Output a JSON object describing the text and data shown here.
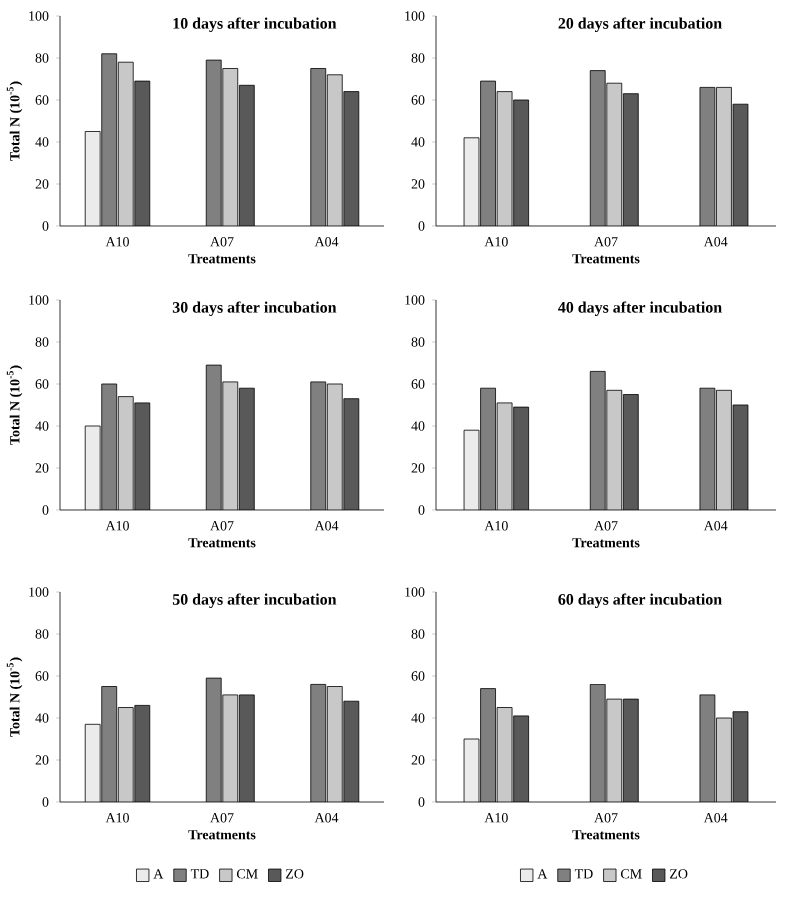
{
  "chart_data": [
    {
      "type": "bar",
      "title": "10 days after incubation",
      "xlabel": "Treatments",
      "ylabel": "Total N (10$^{-5}$)",
      "categories": [
        "A10",
        "A07",
        "A04"
      ],
      "ylim": [
        0,
        100
      ],
      "yticks": [
        0,
        20,
        40,
        60,
        80,
        100
      ],
      "legend": false,
      "series": [
        {
          "color": "#ebebeb",
          "values": [
            45,
            null,
            null
          ]
        },
        {
          "color": "#808080",
          "values": [
            82,
            79,
            75
          ]
        },
        {
          "color": "#c8c8c8",
          "values": [
            78,
            75,
            72
          ]
        },
        {
          "color": "#595959",
          "values": [
            69,
            67,
            64
          ]
        }
      ]
    },
    {
      "type": "bar",
      "title": "20 days after incubation",
      "xlabel": "Treatments",
      "categories": [
        "A10",
        "A07",
        "A04"
      ],
      "ylim": [
        0,
        100
      ],
      "yticks": [
        0,
        20,
        40,
        60,
        80,
        100
      ],
      "legend": false,
      "series": [
        {
          "color": "#ebebeb",
          "values": [
            42,
            null,
            null
          ]
        },
        {
          "color": "#808080",
          "values": [
            69,
            74,
            66
          ]
        },
        {
          "color": "#c8c8c8",
          "values": [
            64,
            68,
            66
          ]
        },
        {
          "color": "#595959",
          "values": [
            60,
            63,
            58
          ]
        }
      ]
    },
    {
      "type": "bar",
      "title": "30 days after incubation",
      "xlabel": "Treatments",
      "ylabel": "Total N (10$^{-5}$)",
      "categories": [
        "A10",
        "A07",
        "A04"
      ],
      "ylim": [
        0,
        100
      ],
      "yticks": [
        0,
        20,
        40,
        60,
        80,
        100
      ],
      "legend": false,
      "series": [
        {
          "color": "#ebebeb",
          "values": [
            40,
            null,
            null
          ]
        },
        {
          "color": "#808080",
          "values": [
            60,
            69,
            61
          ]
        },
        {
          "color": "#c8c8c8",
          "values": [
            54,
            61,
            60
          ]
        },
        {
          "color": "#595959",
          "values": [
            51,
            58,
            53
          ]
        }
      ]
    },
    {
      "type": "bar",
      "title": "40 days after incubation",
      "xlabel": "Treatments",
      "categories": [
        "A10",
        "A07",
        "A04"
      ],
      "ylim": [
        0,
        100
      ],
      "yticks": [
        0,
        20,
        40,
        60,
        80,
        100
      ],
      "legend": false,
      "series": [
        {
          "color": "#ebebeb",
          "values": [
            38,
            null,
            null
          ]
        },
        {
          "color": "#808080",
          "values": [
            58,
            66,
            58
          ]
        },
        {
          "color": "#c8c8c8",
          "values": [
            51,
            57,
            57
          ]
        },
        {
          "color": "#595959",
          "values": [
            49,
            55,
            50
          ]
        }
      ]
    },
    {
      "type": "bar",
      "title": "50 days after incubation",
      "xlabel": "Treatments",
      "ylabel": "Total N (10$^{-5}$)",
      "categories": [
        "A10",
        "A07",
        "A04"
      ],
      "ylim": [
        0,
        100
      ],
      "yticks": [
        0,
        20,
        40,
        60,
        80,
        100
      ],
      "legend": "bottom",
      "series": [
        {
          "name": "A",
          "color": "#ebebeb",
          "values": [
            37,
            null,
            null
          ]
        },
        {
          "name": "TD",
          "color": "#808080",
          "values": [
            55,
            59,
            56
          ]
        },
        {
          "name": "CM",
          "color": "#c8c8c8",
          "values": [
            45,
            51,
            55
          ]
        },
        {
          "name": "ZO",
          "color": "#595959",
          "values": [
            46,
            51,
            48
          ]
        }
      ]
    },
    {
      "type": "bar",
      "title": "60 days after incubation",
      "xlabel": "Treatments",
      "categories": [
        "A10",
        "A07",
        "A04"
      ],
      "ylim": [
        0,
        100
      ],
      "yticks": [
        0,
        20,
        40,
        60,
        80,
        100
      ],
      "legend": "bottom",
      "series": [
        {
          "name": "A",
          "color": "#ebebeb",
          "values": [
            30,
            null,
            null
          ]
        },
        {
          "name": "TD",
          "color": "#808080",
          "values": [
            54,
            56,
            51
          ]
        },
        {
          "name": "CM",
          "color": "#c8c8c8",
          "values": [
            45,
            49,
            40
          ]
        },
        {
          "name": "ZO",
          "color": "#595959",
          "values": [
            41,
            49,
            43
          ]
        }
      ]
    }
  ]
}
